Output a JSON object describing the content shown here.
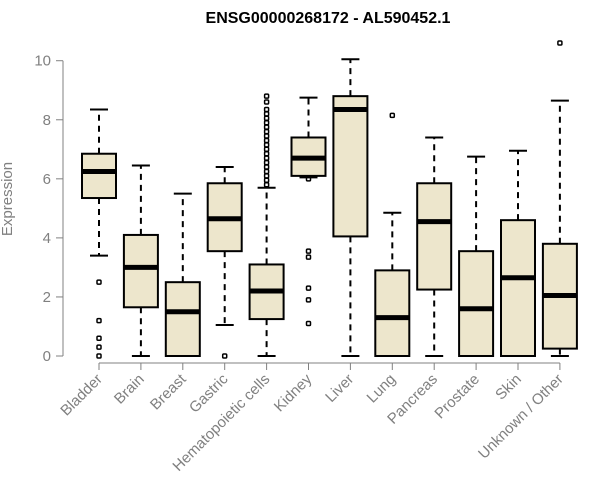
{
  "chart_data": {
    "type": "boxplot",
    "title": "ENSG00000268172 - AL590452.1",
    "xlabel": "",
    "ylabel": "Expression",
    "ylim": [
      0,
      10.6
    ],
    "yticks": [
      0,
      2,
      4,
      6,
      8,
      10
    ],
    "colors": {
      "box_fill": "#ede6cc",
      "box_stroke": "#000000",
      "axis": "#808080"
    },
    "categories": [
      "Bladder",
      "Brain",
      "Breast",
      "Gastric",
      "Hematopoietic cells",
      "Kidney",
      "Liver",
      "Lung",
      "Pancreas",
      "Prostate",
      "Skin",
      "Unknown / Other"
    ],
    "boxes": [
      {
        "name": "Bladder",
        "low": 3.4,
        "q1": 5.35,
        "median": 6.25,
        "q3": 6.85,
        "high": 8.35,
        "outliers": [
          0.0,
          0.3,
          0.6,
          1.2,
          2.5
        ]
      },
      {
        "name": "Brain",
        "low": 0.0,
        "q1": 1.65,
        "median": 3.0,
        "q3": 4.1,
        "high": 6.45,
        "outliers": []
      },
      {
        "name": "Breast",
        "low": 0.0,
        "q1": 0.0,
        "median": 1.5,
        "q3": 2.5,
        "high": 5.5,
        "outliers": []
      },
      {
        "name": "Gastric",
        "low": 1.05,
        "q1": 3.55,
        "median": 4.65,
        "q3": 5.85,
        "high": 6.4,
        "outliers": [
          0.0
        ]
      },
      {
        "name": "Hematopoietic cells",
        "low": 0.0,
        "q1": 1.25,
        "median": 2.2,
        "q3": 3.1,
        "high": 5.7,
        "outliers": [
          5.8,
          5.95,
          6.1,
          6.25,
          6.4,
          6.55,
          6.7,
          6.85,
          7.0,
          7.15,
          7.3,
          7.45,
          7.6,
          7.75,
          7.9,
          8.05,
          8.2,
          8.35,
          8.6,
          8.8
        ]
      },
      {
        "name": "Kidney",
        "low": 6.05,
        "q1": 6.1,
        "median": 6.7,
        "q3": 7.4,
        "high": 8.75,
        "outliers": [
          1.1,
          1.9,
          2.3,
          3.35,
          3.55,
          6.0
        ]
      },
      {
        "name": "Liver",
        "low": 0.0,
        "q1": 4.05,
        "median": 8.35,
        "q3": 8.8,
        "high": 10.05,
        "outliers": []
      },
      {
        "name": "Lung",
        "low": 0.0,
        "q1": 0.0,
        "median": 1.3,
        "q3": 2.9,
        "high": 4.85,
        "outliers": [
          8.15
        ]
      },
      {
        "name": "Pancreas",
        "low": 0.0,
        "q1": 2.25,
        "median": 4.55,
        "q3": 5.85,
        "high": 7.4,
        "outliers": []
      },
      {
        "name": "Prostate",
        "low": 0.0,
        "q1": 0.0,
        "median": 1.6,
        "q3": 3.55,
        "high": 6.75,
        "outliers": []
      },
      {
        "name": "Skin",
        "low": 0.0,
        "q1": 0.0,
        "median": 2.65,
        "q3": 4.6,
        "high": 6.95,
        "outliers": []
      },
      {
        "name": "Unknown / Other",
        "low": 0.0,
        "q1": 0.25,
        "median": 2.05,
        "q3": 3.8,
        "high": 8.65,
        "outliers": [
          10.6
        ]
      }
    ]
  }
}
